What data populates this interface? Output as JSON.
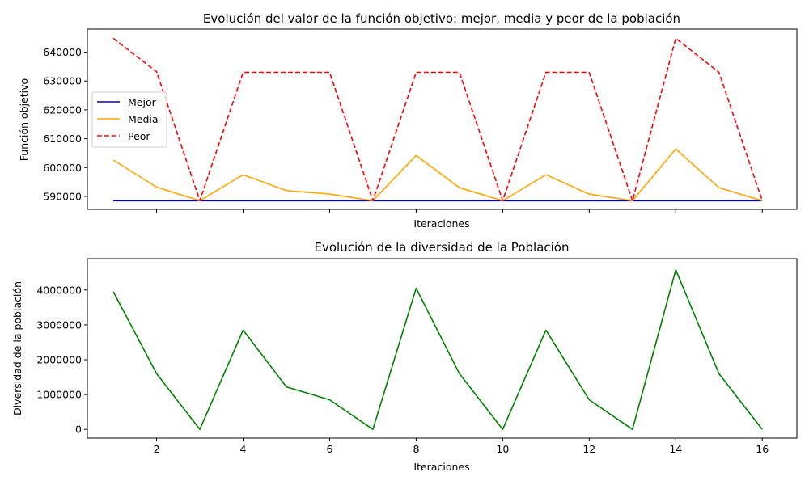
{
  "chart_data": [
    {
      "type": "line",
      "title": "Evolución del valor de la función objetivo: mejor, media y peor de la población",
      "xlabel": "Iteraciones",
      "ylabel": "Función objetivo",
      "x": [
        1,
        2,
        3,
        4,
        5,
        6,
        7,
        8,
        9,
        10,
        11,
        12,
        13,
        14,
        15,
        16
      ],
      "xlim": [
        0.4,
        16.8
      ],
      "ylim": [
        585500,
        648000
      ],
      "yticks": [
        590000,
        600000,
        610000,
        620000,
        630000,
        640000
      ],
      "ytick_labels": [
        "590000",
        "600000",
        "610000",
        "620000",
        "630000",
        "640000"
      ],
      "xticks": [
        2,
        4,
        6,
        8,
        10,
        12,
        14,
        16
      ],
      "show_xtick_labels": false,
      "grid": false,
      "legend_position": "center-left",
      "series": [
        {
          "name": "Mejor",
          "color": "#0000cc",
          "dash": "solid",
          "values": [
            588500,
            588500,
            588500,
            588500,
            588500,
            588500,
            588500,
            588500,
            588500,
            588500,
            588500,
            588500,
            588500,
            588500,
            588500,
            588500
          ]
        },
        {
          "name": "Media",
          "color": "#ffa500",
          "dash": "solid",
          "values": [
            602600,
            593200,
            588500,
            597500,
            592000,
            590800,
            588500,
            604200,
            593000,
            588500,
            597500,
            590800,
            588500,
            606400,
            593000,
            588500
          ]
        },
        {
          "name": "Peor",
          "color": "#ff0000",
          "dash": "dashed",
          "values": [
            644800,
            633200,
            588500,
            633000,
            633000,
            633000,
            588500,
            633000,
            633000,
            588500,
            633000,
            633000,
            588500,
            644800,
            633000,
            588500
          ]
        }
      ]
    },
    {
      "type": "line",
      "title": "Evolución de la diversidad de la Población",
      "xlabel": "Iteraciones",
      "ylabel": "Diversidad de la población",
      "x": [
        1,
        2,
        3,
        4,
        5,
        6,
        7,
        8,
        9,
        10,
        11,
        12,
        13,
        14,
        15,
        16
      ],
      "xlim": [
        0.4,
        16.8
      ],
      "ylim": [
        -250000,
        4900000
      ],
      "yticks": [
        0,
        1000000,
        2000000,
        3000000,
        4000000
      ],
      "ytick_labels": [
        "0",
        "1000000",
        "2000000",
        "3000000",
        "4000000"
      ],
      "xticks": [
        2,
        4,
        6,
        8,
        10,
        12,
        14,
        16
      ],
      "xtick_labels": [
        "2",
        "4",
        "6",
        "8",
        "10",
        "12",
        "14",
        "16"
      ],
      "show_xtick_labels": true,
      "grid": false,
      "series": [
        {
          "color": "#008000",
          "dash": "solid",
          "values": [
            3950000,
            1600000,
            0,
            2850000,
            1220000,
            850000,
            0,
            4050000,
            1600000,
            0,
            2850000,
            850000,
            0,
            4580000,
            1600000,
            0
          ]
        }
      ]
    }
  ]
}
